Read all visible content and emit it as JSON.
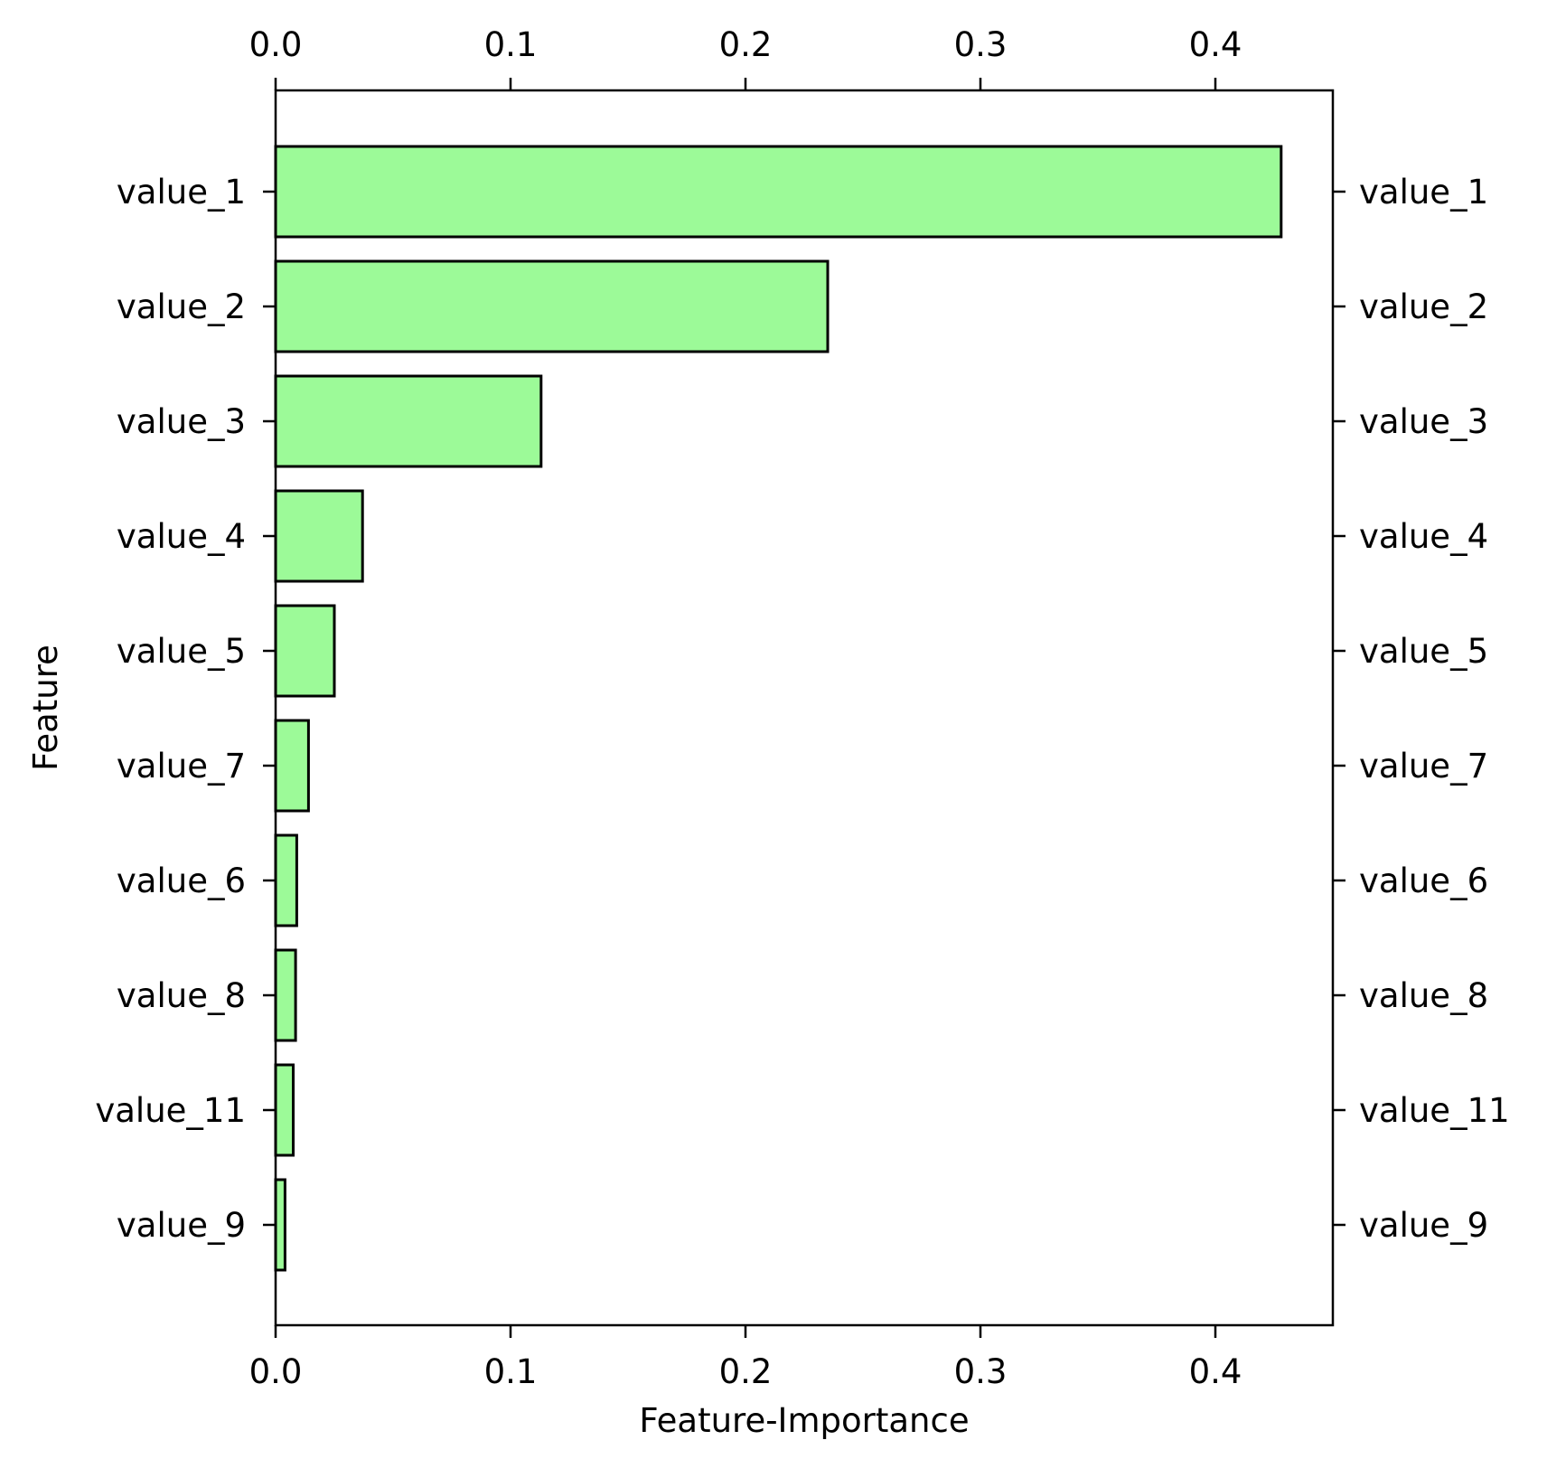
{
  "chart_data": {
    "type": "bar",
    "orientation": "horizontal",
    "categories": [
      "value_1",
      "value_2",
      "value_3",
      "value_4",
      "value_5",
      "value_7",
      "value_6",
      "value_8",
      "value_11",
      "value_9"
    ],
    "values": [
      0.428,
      0.235,
      0.113,
      0.037,
      0.025,
      0.014,
      0.009,
      0.0085,
      0.0075,
      0.004
    ],
    "title": "",
    "xlabel": "Feature-Importance",
    "ylabel": "Feature",
    "xlim": [
      0,
      0.45
    ],
    "xticks": [
      "0.0",
      "0.1",
      "0.2",
      "0.3",
      "0.4"
    ],
    "tick_positions": "bottom, top, left and right",
    "grid": false,
    "legend": false,
    "colors": {
      "bar_fill": "#9cfa98",
      "bar_edge": "#000000",
      "axis": "#000000"
    }
  }
}
